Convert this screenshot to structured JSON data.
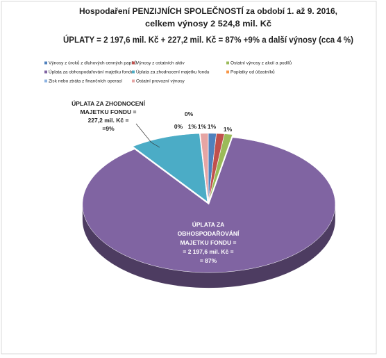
{
  "chart_data": {
    "type": "pie",
    "title": [
      "Hospodaření  PENZIJNÍCH SPOLEČNOSTÍ za období 1. až 9. 2016,",
      "celkem výnosy 2 524,8 mil. Kč",
      "ÚPLATY = 2 197,6 mil. Kč + 227,2 mil. Kč = 87% +9% a další výnosy (cca 4 %)"
    ],
    "categories": [
      "Výnosy z úroků z dluhových cenných papírů",
      "Výnosy z ostatních aktiv",
      "Ostatní výnosy z akcií a podílů",
      "Úplata za obhospodařování majetku fondu",
      "Úplata za zhodnocení majetku fondu",
      "Poplatky od účastníků",
      "Zisk nebo ztráta z finančních operací",
      "Ostatní provozní výnosy"
    ],
    "values": [
      1,
      1,
      1,
      87,
      9,
      0,
      0,
      1
    ],
    "value_labels": [
      "1%",
      "1%",
      "1%",
      "ÚPLATA ZA\nOBHOSPODAŘOVÁNÍ\nMAJETKU FONDU =\n= 2 197,6 mil. Kč =\n= 87%",
      "ÚPLATA ZA ZHODNOCENÍ\nMAJETKU FONDU =\n227,2 mil. Kč =\n=9%",
      "0%",
      "0%",
      "1%"
    ],
    "colors": [
      "#4f81bd",
      "#c0504d",
      "#9bbb59",
      "#8064a2",
      "#4bacc6",
      "#f79646",
      "#8db3e2",
      "#e6a5a4"
    ],
    "legend": "top"
  }
}
